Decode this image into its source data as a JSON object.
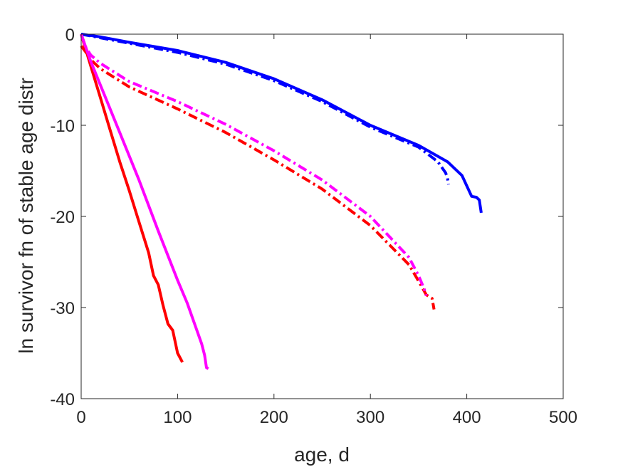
{
  "chart_data": {
    "type": "line",
    "title": "",
    "xlabel": "age, d",
    "ylabel": "ln survivor fn of stable age distr",
    "xlim": [
      0,
      500
    ],
    "ylim": [
      -40,
      0
    ],
    "xticks": [
      0,
      100,
      200,
      300,
      400,
      500
    ],
    "yticks": [
      -40,
      -30,
      -20,
      -10,
      0
    ],
    "xtick_labels": [
      "0",
      "100",
      "200",
      "300",
      "400",
      "500"
    ],
    "ytick_labels": [
      "-40",
      "-30",
      "-20",
      "-10",
      "0"
    ],
    "grid": false,
    "legend": "none",
    "series": [
      {
        "color": "#0000ff",
        "style": "solid",
        "x": [
          0,
          20,
          50,
          100,
          150,
          200,
          250,
          300,
          350,
          380,
          395,
          405,
          410,
          413,
          415
        ],
        "y": [
          0,
          -0.3,
          -0.9,
          -1.8,
          -3.1,
          -4.9,
          -7.2,
          -10.0,
          -12.2,
          -14.0,
          -15.5,
          -17.8,
          -17.9,
          -18.2,
          -19.6
        ]
      },
      {
        "color": "#0000ff",
        "style": "dashdot",
        "x": [
          0,
          20,
          50,
          100,
          150,
          200,
          250,
          300,
          350,
          370,
          378,
          380,
          381
        ],
        "y": [
          0,
          -0.4,
          -1.0,
          -2.0,
          -3.3,
          -5.1,
          -7.4,
          -10.2,
          -12.4,
          -14.0,
          -15.2,
          -15.8,
          -16.5
        ]
      },
      {
        "color": "#ff0000",
        "style": "dashdot",
        "x": [
          0,
          5,
          10,
          20,
          50,
          100,
          150,
          200,
          250,
          300,
          340,
          350,
          358,
          364,
          366
        ],
        "y": [
          -1.3,
          -2.0,
          -2.8,
          -3.8,
          -5.8,
          -8.2,
          -10.8,
          -13.8,
          -17.0,
          -21.0,
          -25.3,
          -27.1,
          -28.6,
          -29.0,
          -30.2
        ]
      },
      {
        "color": "#ff00ff",
        "style": "dashdot",
        "x": [
          0,
          5,
          10,
          20,
          50,
          100,
          150,
          200,
          250,
          300,
          340,
          350,
          356,
          358
        ],
        "y": [
          0,
          -1.5,
          -2.3,
          -3.2,
          -5.2,
          -7.4,
          -9.9,
          -12.8,
          -16.0,
          -20.0,
          -24.5,
          -26.5,
          -28.0,
          -28.7
        ]
      },
      {
        "color": "#ff0000",
        "style": "solid",
        "x": [
          0,
          10,
          20,
          30,
          40,
          50,
          60,
          65,
          70,
          75,
          80,
          85,
          90,
          95,
          100,
          105
        ],
        "y": [
          0,
          -3.5,
          -7.0,
          -10.5,
          -14.0,
          -17.2,
          -20.6,
          -22.3,
          -24.0,
          -26.5,
          -27.5,
          -29.8,
          -31.8,
          -32.5,
          -35.0,
          -36.0
        ]
      },
      {
        "color": "#ff00ff",
        "style": "solid",
        "x": [
          0,
          10,
          20,
          40,
          60,
          80,
          100,
          110,
          120,
          125,
          128,
          130,
          132
        ],
        "y": [
          0,
          -3.0,
          -5.6,
          -10.8,
          -16.0,
          -21.6,
          -27.0,
          -29.5,
          -32.5,
          -34.0,
          -35.2,
          -36.6,
          -36.7
        ]
      }
    ]
  }
}
